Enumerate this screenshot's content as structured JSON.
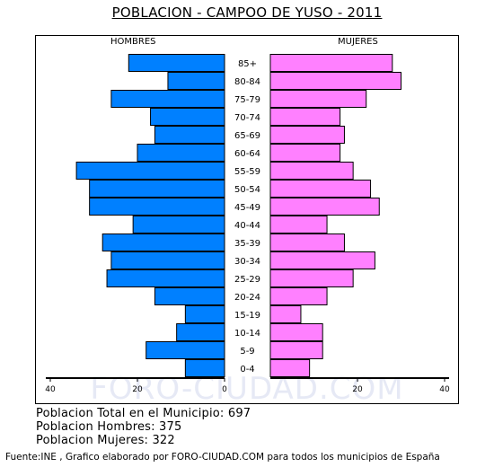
{
  "title": "POBLACION - CAMPOO DE YUSO - 2011",
  "chart_data": {
    "type": "bar",
    "orientation": "horizontal-pyramid",
    "categories": [
      "85+",
      "80-84",
      "75-79",
      "70-74",
      "65-69",
      "60-64",
      "55-59",
      "50-54",
      "45-49",
      "40-44",
      "35-39",
      "30-34",
      "25-29",
      "20-24",
      "15-19",
      "10-14",
      "5-9",
      "0-4"
    ],
    "series": [
      {
        "name": "HOMBRES",
        "color": "#0080ff",
        "values": [
          22,
          13,
          26,
          17,
          16,
          20,
          34,
          31,
          31,
          21,
          28,
          26,
          27,
          16,
          9,
          11,
          18,
          9
        ]
      },
      {
        "name": "MUJERES",
        "color": "#ff80ff",
        "values": [
          28,
          30,
          22,
          16,
          17,
          16,
          19,
          23,
          25,
          13,
          17,
          24,
          19,
          13,
          7,
          12,
          12,
          9
        ]
      }
    ],
    "x_ticks": [
      40,
      20,
      0,
      20,
      40
    ],
    "xlim": [
      0,
      40
    ],
    "grid": false
  },
  "summary": {
    "total": "Poblacion Total en el Municipio: 697",
    "hombres": "Poblacion Hombres: 375",
    "mujeres": "Poblacion Mujeres: 322"
  },
  "watermark": "FORO-CIUDAD.COM",
  "footer": "Fuente:INE , Grafico elaborado por FORO-CIUDAD.COM para todos los municipios de España"
}
